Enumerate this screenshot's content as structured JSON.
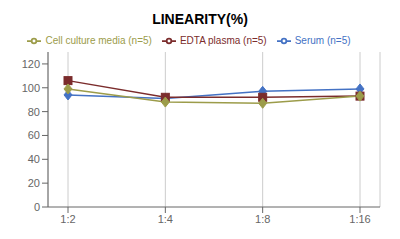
{
  "chart_data": {
    "type": "line",
    "title": "LINEARITY(%)",
    "categories": [
      "1:2",
      "1:4",
      "1:8",
      "1:16"
    ],
    "series": [
      {
        "name": "Serum (n=5)",
        "color": "#4472C4",
        "marker": "diamond",
        "values": [
          94,
          91,
          97,
          99
        ]
      },
      {
        "name": "EDTA plasma (n=5)",
        "color": "#7B2C2C",
        "marker": "square",
        "values": [
          106,
          92,
          92,
          93
        ]
      },
      {
        "name": "Cell culture media (n=5)",
        "color": "#9C9C4A",
        "marker": "diamond",
        "values": [
          99,
          88,
          87,
          93
        ]
      }
    ],
    "ylim": [
      0,
      130
    ],
    "yticks": [
      0,
      20,
      40,
      60,
      80,
      100,
      120
    ],
    "grid": true,
    "legend": "top"
  }
}
